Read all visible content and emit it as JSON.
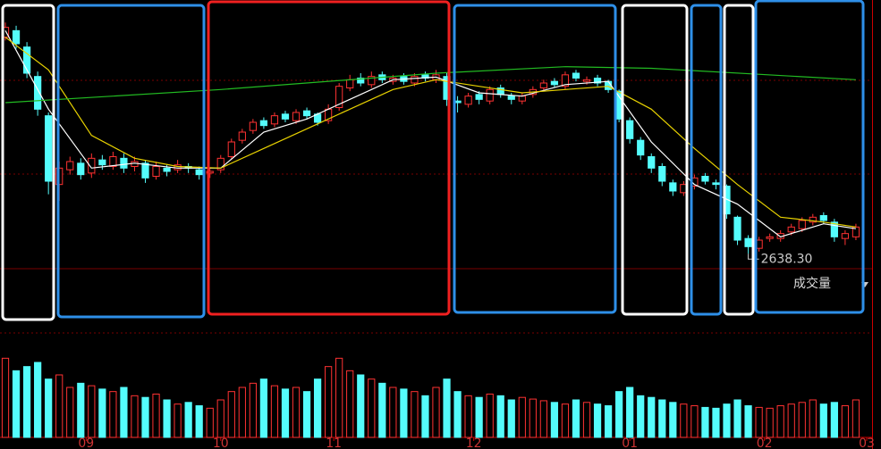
{
  "chart_data": {
    "type": "candlestick",
    "up_color": "#ff3232",
    "down_color": "#54fcfc",
    "xlim": [
      -0.5,
      80.5
    ],
    "xticks": [
      {
        "value": 7.5,
        "label": "09"
      },
      {
        "value": 20,
        "label": "10"
      },
      {
        "value": 30.5,
        "label": "11"
      },
      {
        "value": 43.5,
        "label": "12"
      },
      {
        "value": 58,
        "label": "01"
      },
      {
        "value": 70.5,
        "label": "02"
      },
      {
        "value": 80,
        "label": "03"
      }
    ],
    "ylim": [
      2500,
      3400
    ],
    "open": [
      3300,
      3320,
      3270,
      3180,
      3060,
      2850,
      2895,
      2915,
      2885,
      2925,
      2905,
      2930,
      2905,
      2915,
      2875,
      2900,
      2895,
      2905,
      2895,
      2885,
      2895,
      2935,
      2985,
      3015,
      3045,
      3035,
      3065,
      3045,
      3075,
      3065,
      3045,
      3085,
      3145,
      3175,
      3155,
      3185,
      3165,
      3180,
      3160,
      3185,
      3170,
      3180,
      3105,
      3095,
      3125,
      3105,
      3145,
      3120,
      3105,
      3125,
      3145,
      3165,
      3150,
      3190,
      3165,
      3175,
      3165,
      3135,
      3045,
      2985,
      2935,
      2905,
      2855,
      2825,
      2845,
      2875,
      2855,
      2845,
      2750,
      2685,
      2655,
      2685,
      2685,
      2705,
      2715,
      2735,
      2755,
      2735,
      2685,
      2690
    ],
    "high": [
      3345,
      3335,
      3285,
      3195,
      3070,
      2920,
      2935,
      2930,
      2945,
      2940,
      2950,
      2945,
      2935,
      2925,
      2920,
      2910,
      2925,
      2915,
      2905,
      2900,
      2940,
      2990,
      3020,
      3050,
      3055,
      3070,
      3075,
      3080,
      3085,
      3070,
      3095,
      3160,
      3185,
      3190,
      3195,
      3195,
      3185,
      3190,
      3190,
      3195,
      3200,
      3190,
      3120,
      3130,
      3135,
      3150,
      3155,
      3130,
      3130,
      3150,
      3170,
      3175,
      3195,
      3200,
      3180,
      3185,
      3170,
      3140,
      3055,
      2995,
      2945,
      2915,
      2865,
      2860,
      2880,
      2885,
      2865,
      2850,
      2755,
      2695,
      2690,
      2700,
      2710,
      2730,
      2750,
      2760,
      2765,
      2745,
      2710,
      2730
    ],
    "low": [
      3290,
      3265,
      3175,
      3060,
      2820,
      2800,
      2880,
      2865,
      2870,
      2895,
      2895,
      2885,
      2890,
      2855,
      2865,
      2875,
      2885,
      2885,
      2865,
      2870,
      2885,
      2925,
      2975,
      3005,
      3020,
      3025,
      3040,
      3035,
      3050,
      3030,
      3035,
      3075,
      3135,
      3150,
      3145,
      3160,
      3155,
      3155,
      3150,
      3165,
      3160,
      3090,
      3070,
      3085,
      3095,
      3095,
      3115,
      3095,
      3095,
      3115,
      3135,
      3145,
      3140,
      3165,
      3155,
      3150,
      3130,
      3040,
      2975,
      2925,
      2885,
      2845,
      2815,
      2815,
      2835,
      2850,
      2835,
      2745,
      2665,
      2638.3,
      2645,
      2675,
      2675,
      2695,
      2705,
      2725,
      2730,
      2675,
      2665,
      2680
    ],
    "close": [
      3330,
      3280,
      3190,
      3080,
      2860,
      2900,
      2920,
      2880,
      2930,
      2910,
      2935,
      2900,
      2920,
      2870,
      2905,
      2890,
      2910,
      2900,
      2880,
      2890,
      2930,
      2980,
      3010,
      3040,
      3030,
      3060,
      3050,
      3070,
      3060,
      3040,
      3080,
      3150,
      3170,
      3160,
      3180,
      3170,
      3175,
      3165,
      3180,
      3175,
      3185,
      3110,
      3100,
      3120,
      3110,
      3140,
      3125,
      3110,
      3120,
      3140,
      3160,
      3155,
      3185,
      3175,
      3170,
      3160,
      3140,
      3050,
      2990,
      2940,
      2900,
      2860,
      2830,
      2850,
      2870,
      2860,
      2850,
      2760,
      2680,
      2660,
      2680,
      2690,
      2700,
      2720,
      2740,
      2750,
      2740,
      2690,
      2700,
      2720
    ],
    "lines": [
      {
        "color": "#ffffff",
        "x": [
          0,
          4,
          8,
          12,
          16,
          20,
          24,
          28,
          32,
          36,
          40,
          44,
          48,
          52,
          56,
          60,
          64,
          68,
          72,
          76,
          79
        ],
        "values": [
          3320,
          3080,
          2900,
          2915,
          2900,
          2900,
          3010,
          3050,
          3110,
          3170,
          3178,
          3130,
          3120,
          3155,
          3165,
          2980,
          2850,
          2790,
          2690,
          2730,
          2715
        ]
      },
      {
        "color": "#e8d200",
        "x": [
          0,
          4,
          8,
          12,
          16,
          20,
          24,
          28,
          32,
          36,
          40,
          44,
          48,
          52,
          56,
          60,
          64,
          68,
          72,
          76,
          79
        ],
        "values": [
          3300,
          3200,
          3000,
          2930,
          2905,
          2900,
          2960,
          3020,
          3080,
          3140,
          3170,
          3150,
          3130,
          3140,
          3150,
          3080,
          2960,
          2850,
          2750,
          2735,
          2720
        ]
      },
      {
        "color": "#22bb22",
        "x": [
          0,
          20,
          40,
          52,
          60,
          79
        ],
        "values": [
          3100,
          3140,
          3190,
          3210,
          3205,
          3170
        ]
      }
    ],
    "min_label": "2638.30",
    "volume_label": "成交量",
    "vlim": [
      0,
      120
    ],
    "volume": [
      95,
      80,
      85,
      90,
      70,
      75,
      60,
      65,
      62,
      58,
      55,
      60,
      50,
      48,
      52,
      45,
      40,
      42,
      38,
      35,
      45,
      55,
      60,
      65,
      70,
      62,
      58,
      60,
      55,
      70,
      85,
      95,
      80,
      75,
      70,
      65,
      60,
      58,
      55,
      50,
      60,
      70,
      55,
      50,
      48,
      52,
      50,
      45,
      48,
      46,
      44,
      42,
      40,
      45,
      42,
      40,
      38,
      55,
      60,
      50,
      48,
      45,
      42,
      40,
      38,
      36,
      35,
      40,
      45,
      38,
      36,
      35,
      38,
      40,
      42,
      45,
      40,
      42,
      38,
      45
    ]
  }
}
